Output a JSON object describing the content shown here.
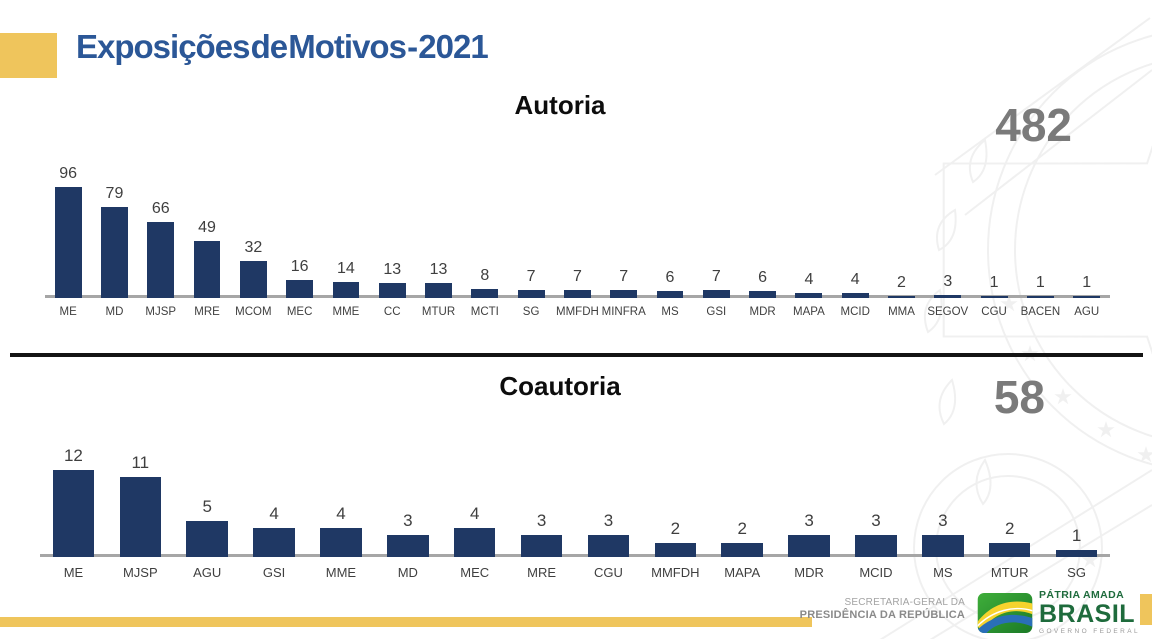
{
  "header": {
    "title": "Exposições de Motivos - 2021"
  },
  "chart_data": [
    {
      "type": "bar",
      "title": "Autoria",
      "total_label": "482",
      "categories": [
        "ME",
        "MD",
        "MJSP",
        "MRE",
        "MCOM",
        "MEC",
        "MME",
        "CC",
        "MTUR",
        "MCTI",
        "SG",
        "MMFDH",
        "MINFRA",
        "MS",
        "GSI",
        "MDR",
        "MAPA",
        "MCID",
        "MMA",
        "SEGOV",
        "CGU",
        "BACEN",
        "AGU"
      ],
      "values": [
        96,
        79,
        66,
        49,
        32,
        16,
        14,
        13,
        13,
        8,
        7,
        7,
        7,
        6,
        7,
        6,
        4,
        4,
        2,
        3,
        1,
        1,
        1
      ],
      "xlabel": "",
      "ylabel": "",
      "ylim": [
        0,
        96
      ],
      "grid": false,
      "legend": "none",
      "data_labels": "outside-end",
      "bar_color": "#1F3864"
    },
    {
      "type": "bar",
      "title": "Coautoria",
      "total_label": "58",
      "categories": [
        "ME",
        "MJSP",
        "AGU",
        "GSI",
        "MME",
        "MD",
        "MEC",
        "MRE",
        "CGU",
        "MMFDH",
        "MAPA",
        "MDR",
        "MCID",
        "MS",
        "MTUR",
        "SG"
      ],
      "values": [
        12,
        11,
        5,
        4,
        4,
        3,
        4,
        3,
        3,
        2,
        2,
        3,
        3,
        3,
        2,
        1
      ],
      "xlabel": "",
      "ylabel": "",
      "ylim": [
        0,
        12
      ],
      "grid": false,
      "legend": "none",
      "data_labels": "outside-end",
      "bar_color": "#1F3864"
    }
  ],
  "footer": {
    "org_line1": "SECRETARIA-GERAL DA",
    "org_line2": "PRESIDÊNCIA DA REPÚBLICA",
    "brand_top": "PÁTRIA AMADA",
    "brand_main": "BRASIL",
    "brand_sub": "GOVERNO FEDERAL"
  },
  "colors": {
    "bar_navy": "#1F3864",
    "title_blue": "#2B5797",
    "accent_yellow": "#EFC55C",
    "total_gray": "#7A7A7A",
    "axis_gray": "#A6A6A6",
    "brand_green": "#1E6B3C"
  }
}
